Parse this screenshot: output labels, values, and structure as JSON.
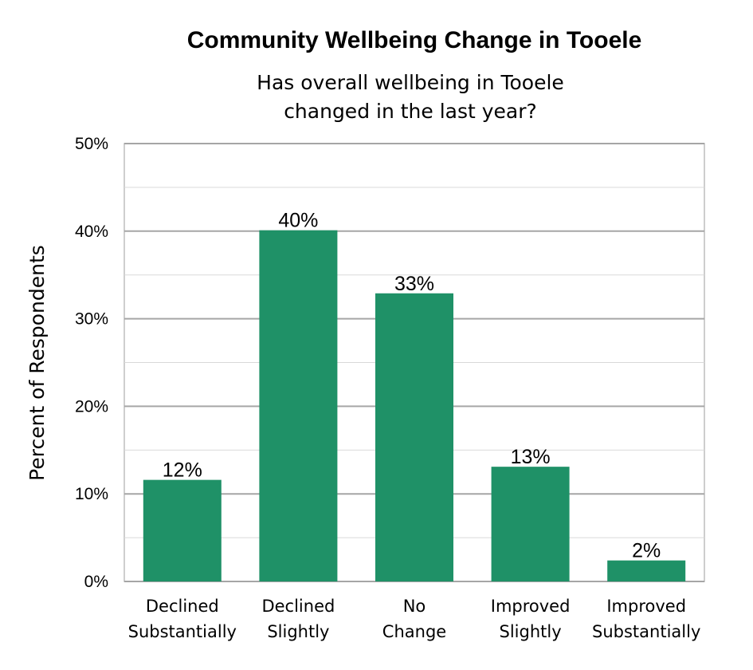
{
  "chart_data": {
    "type": "bar",
    "title": "Community Wellbeing Change in Tooele",
    "subtitle": [
      "Has overall wellbeing in Tooele",
      "changed in the last year?"
    ],
    "ylabel": "Percent of Respondents",
    "xlabel": "",
    "ylim": [
      0,
      50
    ],
    "yticks": [
      "0%",
      "10%",
      "20%",
      "30%",
      "40%",
      "50%"
    ],
    "grid": true,
    "categories": [
      [
        "Declined",
        "Substantially"
      ],
      [
        "Declined",
        "Slightly"
      ],
      [
        "No",
        "Change"
      ],
      [
        "Improved",
        "Slightly"
      ],
      [
        "Improved",
        "Substantially"
      ]
    ],
    "values": [
      11.6,
      40.1,
      32.9,
      13.1,
      2.4
    ],
    "data_labels": [
      "12%",
      "40%",
      "33%",
      "13%",
      "2%"
    ],
    "bar_color": "#1f9167",
    "grid_color": "#bdbdbd"
  }
}
